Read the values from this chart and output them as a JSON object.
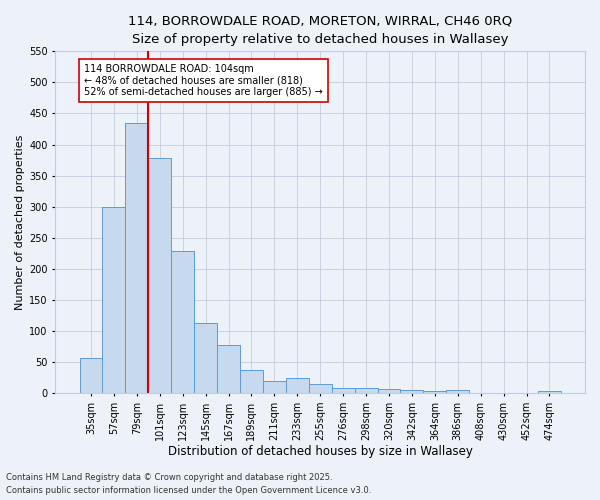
{
  "title_line1": "114, BORROWDALE ROAD, MORETON, WIRRAL, CH46 0RQ",
  "title_line2": "Size of property relative to detached houses in Wallasey",
  "xlabel": "Distribution of detached houses by size in Wallasey",
  "ylabel": "Number of detached properties",
  "categories": [
    "35sqm",
    "57sqm",
    "79sqm",
    "101sqm",
    "123sqm",
    "145sqm",
    "167sqm",
    "189sqm",
    "211sqm",
    "233sqm",
    "255sqm",
    "276sqm",
    "298sqm",
    "320sqm",
    "342sqm",
    "364sqm",
    "386sqm",
    "408sqm",
    "430sqm",
    "452sqm",
    "474sqm"
  ],
  "values": [
    57,
    300,
    435,
    378,
    228,
    113,
    77,
    37,
    19,
    25,
    14,
    9,
    9,
    7,
    5,
    4,
    5,
    0,
    0,
    0,
    4
  ],
  "bar_color": "#c6d9ee",
  "bar_edge_color": "#5b9bd5",
  "property_line_x": 2.5,
  "annotation_text": "114 BORROWDALE ROAD: 104sqm\n← 48% of detached houses are smaller (818)\n52% of semi-detached houses are larger (885) →",
  "annotation_box_color": "#ffffff",
  "annotation_box_edge_color": "#cc0000",
  "vline_color": "#cc0000",
  "background_color": "#edf2f9",
  "grid_color": "#c0cce0",
  "ylim": [
    0,
    550
  ],
  "yticks": [
    0,
    50,
    100,
    150,
    200,
    250,
    300,
    350,
    400,
    450,
    500,
    550
  ],
  "footer_line1": "Contains HM Land Registry data © Crown copyright and database right 2025.",
  "footer_line2": "Contains public sector information licensed under the Open Government Licence v3.0.",
  "title_fontsize": 9.5,
  "subtitle_fontsize": 9,
  "axis_label_fontsize": 8.5,
  "tick_fontsize": 7,
  "footer_fontsize": 6,
  "annotation_fontsize": 7,
  "ylabel_fontsize": 8
}
